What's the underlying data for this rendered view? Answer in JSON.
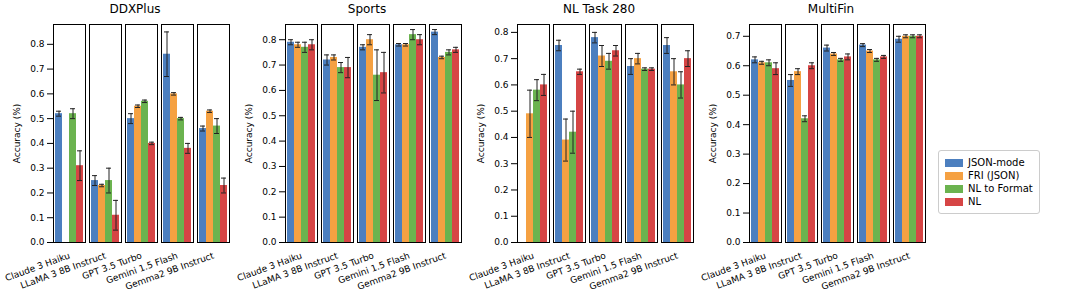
{
  "chart_data": [
    {
      "type": "bar",
      "title": "DDXPlus",
      "y_label": "Accuracy (%)",
      "categories": [
        "Claude 3 Haiku",
        "LLaMA 3 8B Instruct",
        "GPT 3.5 Turbo",
        "Gemini 1.5 Flash",
        "Gemma2 9B Instruct"
      ],
      "ylim": [
        0,
        0.88
      ],
      "yticks": [
        {
          "value": 0,
          "label": "0.0"
        },
        0.1,
        0.2,
        0.3,
        0.4,
        0.5,
        0.6,
        0.7,
        0.8
      ],
      "series": [
        {
          "name": "JSON-mode",
          "color": "#4c7fbf",
          "values": [
            0.52,
            0.25,
            0.5,
            0.76,
            0.46
          ],
          "errors": [
            0.01,
            0.02,
            0.02,
            0.09,
            0.01
          ]
        },
        {
          "name": "FRI (JSON)",
          "color": "#f5a142",
          "values": [
            null,
            0.23,
            0.55,
            0.6,
            0.53
          ],
          "errors": [
            null,
            0.005,
            0.005,
            0.005,
            0.005
          ]
        },
        {
          "name": "NL to Format",
          "color": "#6bb34f",
          "values": [
            0.52,
            0.25,
            0.57,
            0.5,
            0.47
          ],
          "errors": [
            0.02,
            0.05,
            0.005,
            0.005,
            0.03
          ]
        },
        {
          "name": "NL",
          "color": "#d64545",
          "values": [
            0.31,
            0.11,
            0.4,
            0.38,
            0.23
          ],
          "errors": [
            0.06,
            0.06,
            0.005,
            0.02,
            0.03
          ]
        }
      ]
    },
    {
      "type": "bar",
      "title": "Sports",
      "y_label": "Accuracy (%)",
      "categories": [
        "Claude 3 Haiku",
        "LLaMA 3 8B Instruct",
        "GPT 3.5 Turbo",
        "Gemini 1.5 Flash",
        "Gemma2 9B Instruct"
      ],
      "ylim": [
        0,
        0.86
      ],
      "yticks": [
        {
          "value": 0,
          "label": "0.0"
        },
        0.1,
        0.2,
        0.3,
        0.4,
        0.5,
        0.6,
        0.7,
        0.8
      ],
      "series": [
        {
          "name": "JSON-mode",
          "color": "#4c7fbf",
          "values": [
            0.79,
            0.72,
            0.77,
            0.78,
            0.83
          ],
          "errors": [
            0.01,
            0.02,
            0.01,
            0.005,
            0.01
          ]
        },
        {
          "name": "FRI (JSON)",
          "color": "#f5a142",
          "values": [
            0.78,
            0.73,
            0.8,
            0.78,
            0.73
          ],
          "errors": [
            0.01,
            0.01,
            0.02,
            0.005,
            0.005
          ]
        },
        {
          "name": "NL to Format",
          "color": "#6bb34f",
          "values": [
            0.77,
            0.69,
            0.66,
            0.82,
            0.75
          ],
          "errors": [
            0.02,
            0.02,
            0.1,
            0.02,
            0.01
          ]
        },
        {
          "name": "NL",
          "color": "#d64545",
          "values": [
            0.78,
            0.69,
            0.67,
            0.8,
            0.76
          ],
          "errors": [
            0.02,
            0.04,
            0.08,
            0.02,
            0.01
          ]
        }
      ]
    },
    {
      "type": "bar",
      "title": "NL Task 280",
      "y_label": "Accuracy (%)",
      "categories": [
        "Claude 3 Haiku",
        "LLaMA 3 8B Instruct",
        "GPT 3.5 Turbo",
        "Gemini 1.5 Flash",
        "Gemma2 9B Instruct"
      ],
      "ylim": [
        0,
        0.83
      ],
      "yticks": [
        {
          "value": 0,
          "label": "0.0"
        },
        0.1,
        0.2,
        0.3,
        0.4,
        0.5,
        0.6,
        0.7,
        0.8
      ],
      "series": [
        {
          "name": "JSON-mode",
          "color": "#4c7fbf",
          "values": [
            null,
            0.75,
            0.78,
            0.67,
            0.75
          ],
          "errors": [
            null,
            0.02,
            0.02,
            0.03,
            0.03
          ]
        },
        {
          "name": "FRI (JSON)",
          "color": "#f5a142",
          "values": [
            0.49,
            0.39,
            0.71,
            0.7,
            0.65
          ],
          "errors": [
            0.09,
            0.08,
            0.04,
            0.02,
            0.05
          ]
        },
        {
          "name": "NL to Format",
          "color": "#6bb34f",
          "values": [
            0.58,
            0.42,
            0.69,
            0.66,
            0.6
          ],
          "errors": [
            0.04,
            0.08,
            0.03,
            0.005,
            0.05
          ]
        },
        {
          "name": "NL",
          "color": "#d64545",
          "values": [
            0.6,
            0.65,
            0.73,
            0.66,
            0.7
          ],
          "errors": [
            0.04,
            0.01,
            0.02,
            0.005,
            0.03
          ]
        }
      ]
    },
    {
      "type": "bar",
      "title": "MultiFin",
      "y_label": "Accuracy (%)",
      "legend": "right",
      "categories": [
        "Claude 3 Haiku",
        "LLaMA 3 8B Instruct",
        "GPT 3.5 Turbo",
        "Gemini 1.5 Flash",
        "Gemma2 9B Instruct"
      ],
      "ylim": [
        0,
        0.74
      ],
      "yticks": [
        {
          "value": 0,
          "label": "0.0"
        },
        0.1,
        0.2,
        0.3,
        0.4,
        0.5,
        0.6,
        0.7
      ],
      "series": [
        {
          "name": "JSON-mode",
          "color": "#4c7fbf",
          "values": [
            0.62,
            0.55,
            0.66,
            0.67,
            0.69
          ],
          "errors": [
            0.01,
            0.02,
            0.01,
            0.005,
            0.01
          ]
        },
        {
          "name": "FRI (JSON)",
          "color": "#f5a142",
          "values": [
            0.61,
            0.58,
            0.64,
            0.65,
            0.7
          ],
          "errors": [
            0.005,
            0.01,
            0.005,
            0.005,
            0.005
          ]
        },
        {
          "name": "NL to Format",
          "color": "#6bb34f",
          "values": [
            0.61,
            0.42,
            0.62,
            0.62,
            0.7
          ],
          "errors": [
            0.01,
            0.01,
            0.005,
            0.005,
            0.005
          ]
        },
        {
          "name": "NL",
          "color": "#d64545",
          "values": [
            0.59,
            0.6,
            0.63,
            0.63,
            0.7
          ],
          "errors": [
            0.02,
            0.01,
            0.01,
            0.005,
            0.005
          ]
        }
      ]
    }
  ]
}
